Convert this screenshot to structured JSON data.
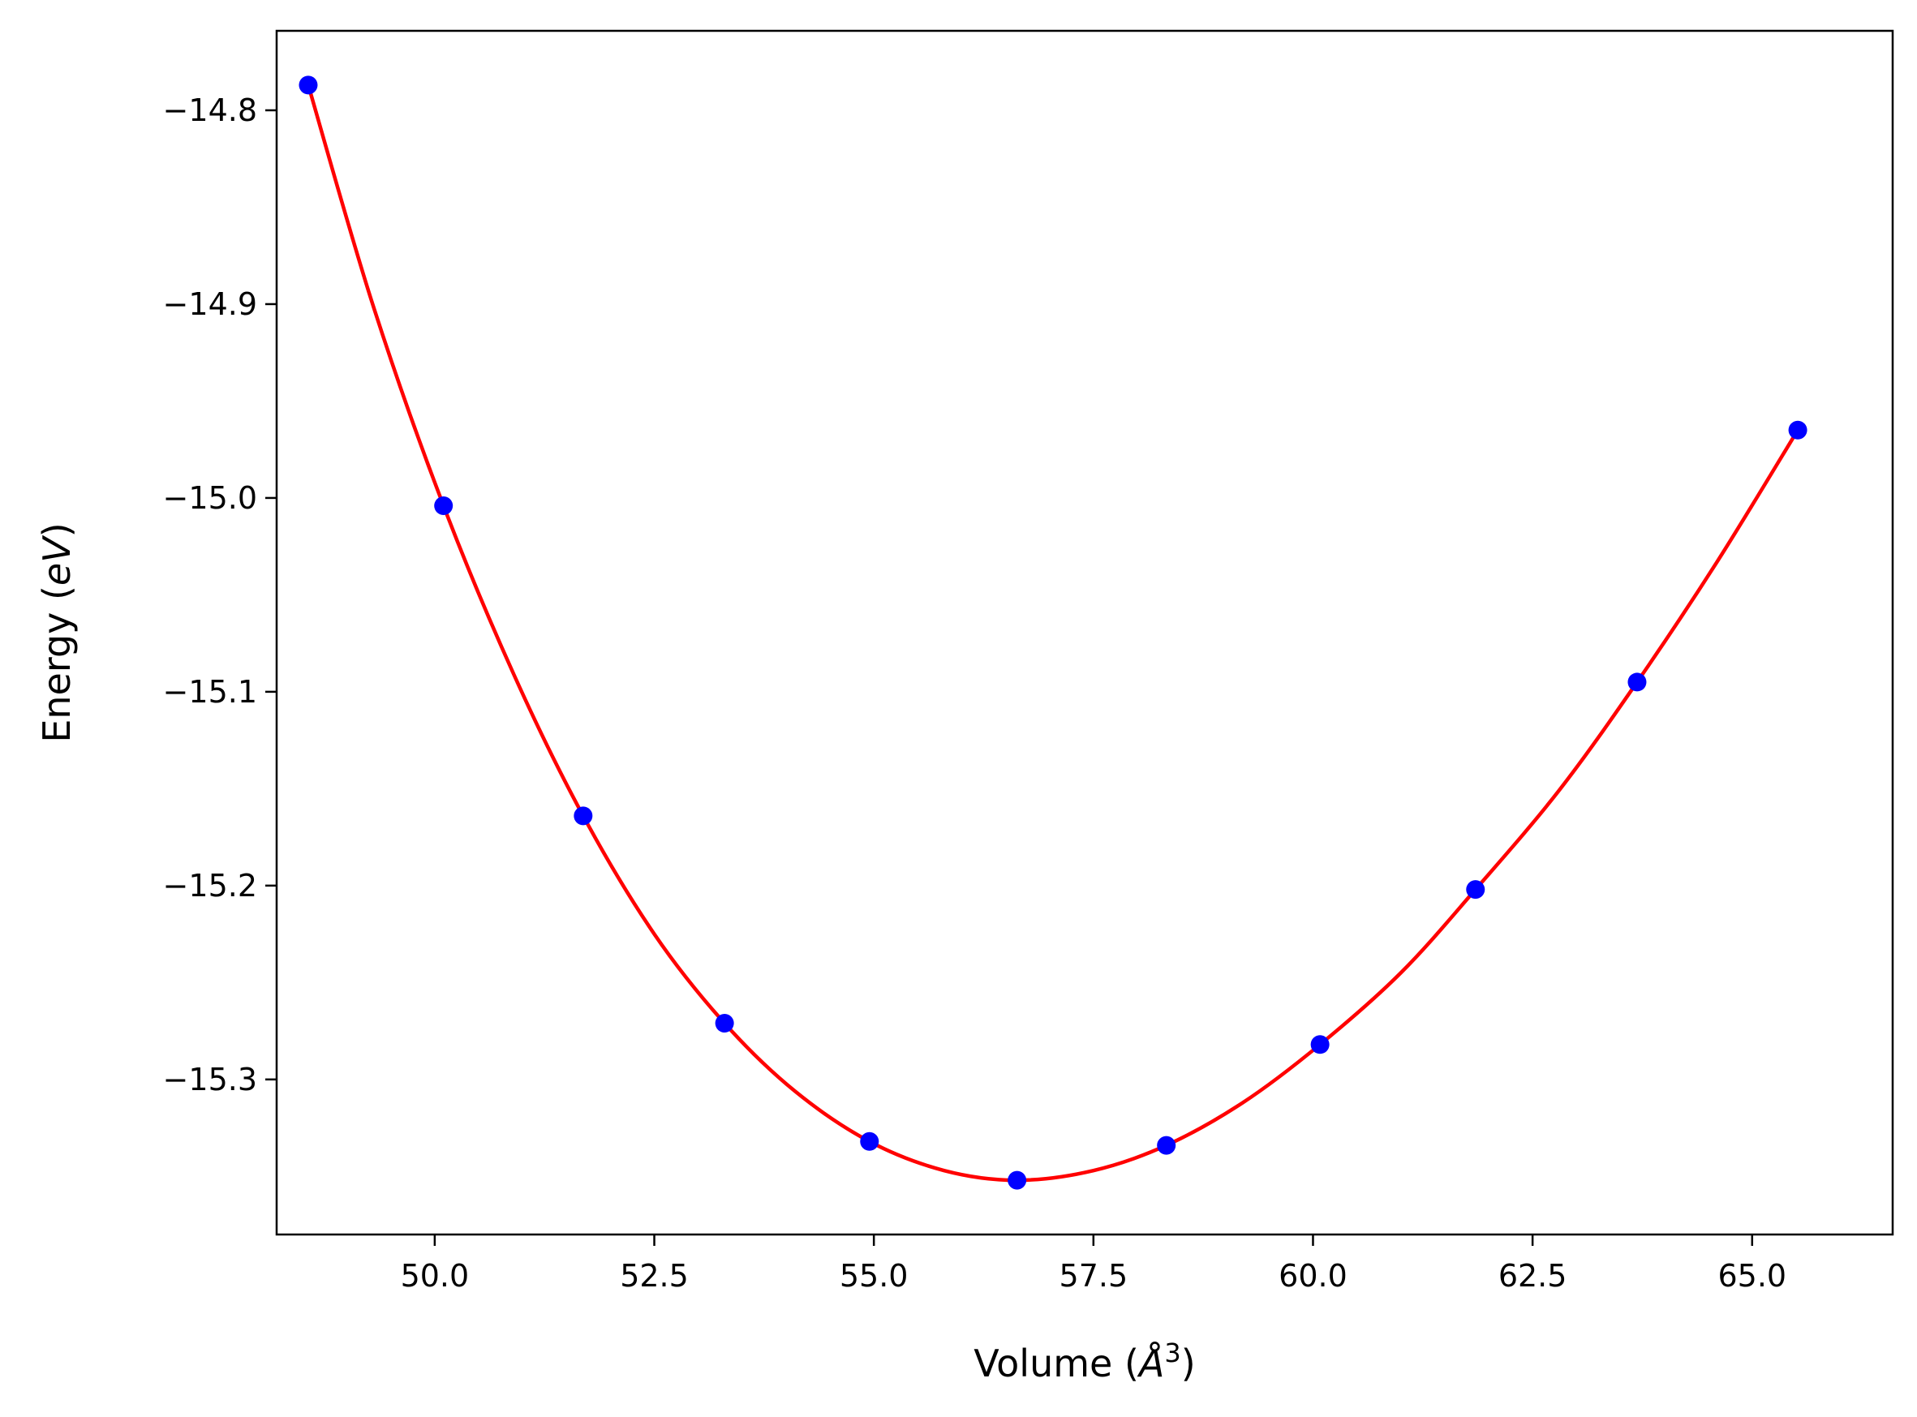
{
  "chart_data": {
    "type": "line",
    "title": "",
    "xlabel": "Volume",
    "xlabel_unit": "Å",
    "xlabel_unit_exp": "3",
    "ylabel": "Energy",
    "ylabel_unit": "eV",
    "xlim": [
      48.2,
      66.6
    ],
    "ylim": [
      -15.38,
      -14.759
    ],
    "xticks": [
      50.0,
      52.5,
      55.0,
      57.5,
      60.0,
      62.5,
      65.0
    ],
    "xtick_labels": [
      "50.0",
      "52.5",
      "55.0",
      "57.5",
      "60.0",
      "62.5",
      "65.0"
    ],
    "yticks": [
      -14.8,
      -14.9,
      -15.0,
      -15.1,
      -15.2,
      -15.3
    ],
    "ytick_labels": [
      "−14.8",
      "−14.9",
      "−15.0",
      "−15.1",
      "−15.2",
      "−15.3"
    ],
    "grid": false,
    "series": [
      {
        "kind": "points",
        "color": "#0000ff",
        "x": [
          48.56,
          50.1,
          51.69,
          53.3,
          54.95,
          56.63,
          58.33,
          60.08,
          61.85,
          63.69,
          65.52
        ],
        "y": [
          -14.787,
          -15.004,
          -15.164,
          -15.271,
          -15.332,
          -15.352,
          -15.334,
          -15.282,
          -15.202,
          -15.095,
          -14.965
        ]
      },
      {
        "kind": "fit-curve",
        "color": "#ff0000",
        "x": [
          48.56,
          49.3,
          50.1,
          50.9,
          51.69,
          52.5,
          53.3,
          54.1,
          54.95,
          55.8,
          56.63,
          57.5,
          58.33,
          59.2,
          60.08,
          61.0,
          61.85,
          62.8,
          63.69,
          64.6,
          65.52
        ],
        "y": [
          -14.787,
          -14.901,
          -15.004,
          -15.091,
          -15.164,
          -15.225,
          -15.271,
          -15.306,
          -15.332,
          -15.347,
          -15.352,
          -15.347,
          -15.334,
          -15.312,
          -15.282,
          -15.245,
          -15.202,
          -15.151,
          -15.095,
          -15.033,
          -14.965
        ]
      }
    ]
  }
}
